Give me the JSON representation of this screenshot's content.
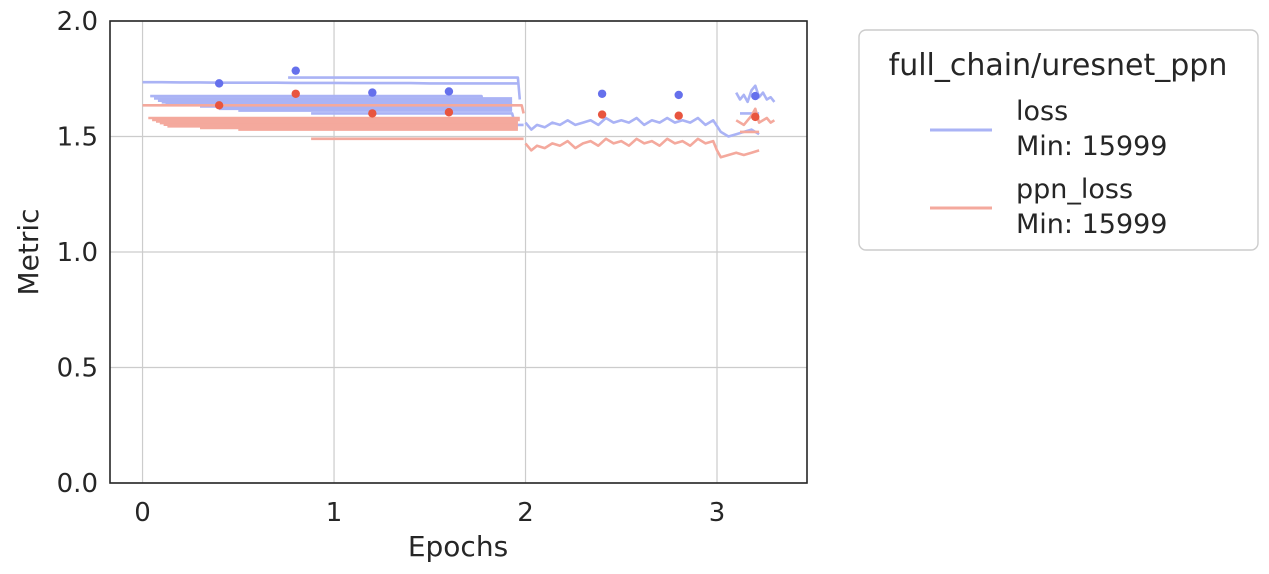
{
  "chart_data": {
    "type": "line",
    "xlabel": "Epochs",
    "ylabel": "Metric",
    "xlim": [
      -0.17,
      3.47
    ],
    "ylim": [
      0.0,
      2.0
    ],
    "xticks": [
      0,
      1,
      2,
      3
    ],
    "xtick_labels": [
      "0",
      "1",
      "2",
      "3"
    ],
    "yticks": [
      0.0,
      0.5,
      1.0,
      1.5,
      2.0
    ],
    "ytick_labels": [
      "0.0",
      "0.5",
      "1.0",
      "1.5",
      "2.0"
    ],
    "grid": true,
    "legend": {
      "title": "full_chain/uresnet_ppn",
      "placement": "outside-right"
    },
    "series": [
      {
        "name": "loss",
        "min_label": "Min: 15999",
        "line_color": "#aab3f5",
        "marker_color": "#6570ec",
        "segments": [
          {
            "x": [
              0.0,
              0.1,
              0.2,
              0.3,
              0.4,
              0.5,
              0.6,
              0.7,
              0.8,
              0.9,
              1.0,
              1.1,
              1.2,
              1.3,
              1.4,
              1.5,
              1.6,
              1.7,
              1.8,
              1.9,
              1.96
            ],
            "y": [
              1.735,
              1.735,
              1.734,
              1.734,
              1.733,
              1.733,
              1.733,
              1.733,
              1.732,
              1.732,
              1.732,
              1.731,
              1.731,
              1.731,
              1.731,
              1.73,
              1.73,
              1.73,
              1.73,
              1.73,
              1.73
            ]
          },
          {
            "x": [
              0.76,
              1.0,
              1.4,
              1.8,
              1.96,
              1.97
            ],
            "y": [
              1.755,
              1.755,
              1.755,
              1.755,
              1.755,
              1.66
            ]
          },
          {
            "x": [
              0.04,
              0.5,
              1.0,
              1.5,
              1.77,
              1.78
            ],
            "y": [
              1.675,
              1.675,
              1.675,
              1.675,
              1.675,
              1.64
            ]
          },
          {
            "x": [
              0.06,
              0.5,
              1.0,
              1.5,
              1.93
            ],
            "y": [
              1.665,
              1.665,
              1.665,
              1.665,
              1.665
            ]
          },
          {
            "x": [
              0.08,
              0.5,
              1.0,
              1.5,
              1.93
            ],
            "y": [
              1.655,
              1.655,
              1.655,
              1.655,
              1.655
            ]
          },
          {
            "x": [
              0.1,
              0.5,
              1.0,
              1.5,
              1.93
            ],
            "y": [
              1.648,
              1.648,
              1.648,
              1.648,
              1.648
            ]
          },
          {
            "x": [
              0.12,
              0.5,
              1.0,
              1.5,
              1.93
            ],
            "y": [
              1.64,
              1.64,
              1.64,
              1.64,
              1.64
            ]
          },
          {
            "x": [
              0.3,
              0.7,
              1.0,
              1.5,
              1.93
            ],
            "y": [
              1.63,
              1.63,
              1.63,
              1.63,
              1.63
            ]
          },
          {
            "x": [
              0.4,
              0.8,
              1.0,
              1.5,
              1.93
            ],
            "y": [
              1.62,
              1.62,
              1.62,
              1.62,
              1.62
            ]
          },
          {
            "x": [
              0.5,
              0.9,
              1.2,
              1.6,
              1.93
            ],
            "y": [
              1.612,
              1.612,
              1.612,
              1.612,
              1.612
            ]
          },
          {
            "x": [
              0.88,
              1.2,
              1.6,
              1.93,
              1.94
            ],
            "y": [
              1.6,
              1.6,
              1.6,
              1.6,
              1.57
            ]
          },
          {
            "x": [
              0.9,
              1.2,
              1.6,
              1.99
            ],
            "y": [
              1.55,
              1.55,
              1.55,
              1.55
            ]
          },
          {
            "x": [
              2.0,
              2.03,
              2.06,
              2.1,
              2.14,
              2.18,
              2.22,
              2.26,
              2.3,
              2.34,
              2.38,
              2.42,
              2.46,
              2.5,
              2.54,
              2.58,
              2.62,
              2.66,
              2.7,
              2.74,
              2.78,
              2.82,
              2.86,
              2.9,
              2.94,
              2.98,
              3.02,
              3.06,
              3.1,
              3.14,
              3.18,
              3.22
            ],
            "y": [
              1.56,
              1.53,
              1.55,
              1.54,
              1.56,
              1.55,
              1.57,
              1.55,
              1.56,
              1.57,
              1.55,
              1.58,
              1.56,
              1.57,
              1.56,
              1.58,
              1.55,
              1.57,
              1.56,
              1.58,
              1.56,
              1.57,
              1.56,
              1.58,
              1.55,
              1.57,
              1.52,
              1.5,
              1.51,
              1.52,
              1.53,
              1.51
            ]
          },
          {
            "x": [
              3.1,
              3.12,
              3.14,
              3.16,
              3.18,
              3.2,
              3.22,
              3.24,
              3.26,
              3.28,
              3.3
            ],
            "y": [
              1.69,
              1.66,
              1.68,
              1.65,
              1.7,
              1.72,
              1.67,
              1.69,
              1.66,
              1.67,
              1.65
            ]
          },
          {
            "x": [
              3.12,
              3.22
            ],
            "y": [
              1.6,
              1.6
            ]
          }
        ],
        "points": {
          "x": [
            0.4,
            0.8,
            1.2,
            1.6,
            2.4,
            2.8,
            3.2
          ],
          "y": [
            1.73,
            1.785,
            1.69,
            1.695,
            1.685,
            1.68,
            1.675
          ]
        }
      },
      {
        "name": "ppn_loss",
        "min_label": "Min: 15999",
        "line_color": "#f4a99d",
        "marker_color": "#e8553f",
        "segments": [
          {
            "x": [
              0.0,
              0.5,
              1.0,
              1.5,
              1.98,
              1.99
            ],
            "y": [
              1.635,
              1.635,
              1.635,
              1.635,
              1.635,
              1.6
            ]
          },
          {
            "x": [
              0.03,
              0.5,
              1.0,
              1.5,
              1.97
            ],
            "y": [
              1.58,
              1.58,
              1.58,
              1.58,
              1.58
            ]
          },
          {
            "x": [
              0.05,
              0.5,
              1.0,
              1.5,
              1.97
            ],
            "y": [
              1.572,
              1.572,
              1.572,
              1.572,
              1.572
            ]
          },
          {
            "x": [
              0.07,
              0.5,
              1.0,
              1.5,
              1.96
            ],
            "y": [
              1.565,
              1.565,
              1.565,
              1.565,
              1.565
            ]
          },
          {
            "x": [
              0.09,
              0.5,
              1.0,
              1.5,
              1.96
            ],
            "y": [
              1.558,
              1.558,
              1.558,
              1.558,
              1.558
            ]
          },
          {
            "x": [
              0.11,
              0.5,
              1.0,
              1.5,
              1.96
            ],
            "y": [
              1.551,
              1.551,
              1.551,
              1.551,
              1.551
            ]
          },
          {
            "x": [
              0.13,
              0.5,
              1.0,
              1.5,
              1.96
            ],
            "y": [
              1.544,
              1.544,
              1.544,
              1.544,
              1.544
            ]
          },
          {
            "x": [
              0.3,
              0.7,
              1.0,
              1.5,
              1.96
            ],
            "y": [
              1.537,
              1.537,
              1.537,
              1.537,
              1.537
            ]
          },
          {
            "x": [
              0.5,
              0.9,
              1.2,
              1.6,
              1.96
            ],
            "y": [
              1.53,
              1.53,
              1.53,
              1.53,
              1.53
            ]
          },
          {
            "x": [
              0.88,
              1.2,
              1.6,
              1.99
            ],
            "y": [
              1.49,
              1.49,
              1.49,
              1.49
            ]
          },
          {
            "x": [
              2.0,
              2.03,
              2.06,
              2.1,
              2.14,
              2.18,
              2.22,
              2.26,
              2.3,
              2.34,
              2.38,
              2.42,
              2.46,
              2.5,
              2.54,
              2.58,
              2.62,
              2.66,
              2.7,
              2.74,
              2.78,
              2.82,
              2.86,
              2.9,
              2.94,
              2.98,
              3.0,
              3.02,
              3.06,
              3.1,
              3.14,
              3.18,
              3.22
            ],
            "y": [
              1.47,
              1.44,
              1.46,
              1.45,
              1.47,
              1.46,
              1.48,
              1.45,
              1.47,
              1.48,
              1.46,
              1.49,
              1.47,
              1.48,
              1.46,
              1.49,
              1.47,
              1.48,
              1.46,
              1.49,
              1.47,
              1.48,
              1.46,
              1.49,
              1.47,
              1.48,
              1.44,
              1.41,
              1.42,
              1.43,
              1.42,
              1.43,
              1.44
            ]
          },
          {
            "x": [
              3.1,
              3.14,
              3.18,
              3.2,
              3.22,
              3.26,
              3.28,
              3.3
            ],
            "y": [
              1.57,
              1.55,
              1.59,
              1.62,
              1.56,
              1.58,
              1.56,
              1.57
            ]
          },
          {
            "x": [
              3.12,
              3.22
            ],
            "y": [
              1.52,
              1.52
            ]
          }
        ],
        "points": {
          "x": [
            0.4,
            0.8,
            1.2,
            1.6,
            2.4,
            2.8,
            3.2
          ],
          "y": [
            1.635,
            1.685,
            1.6,
            1.605,
            1.595,
            1.59,
            1.585
          ]
        }
      }
    ]
  }
}
